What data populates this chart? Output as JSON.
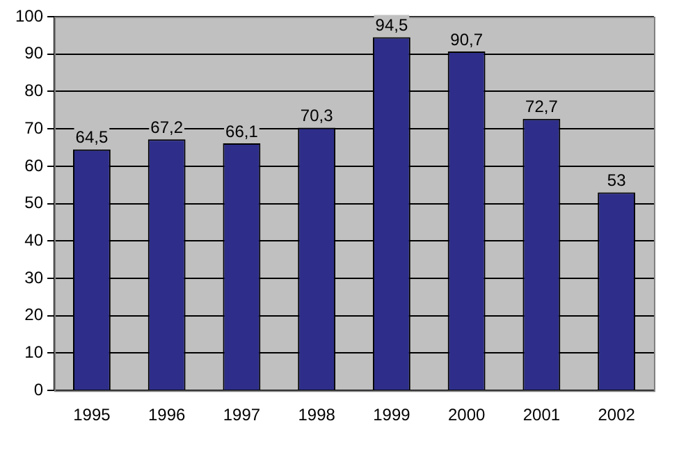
{
  "chart_data": {
    "type": "bar",
    "categories": [
      "1995",
      "1996",
      "1997",
      "1998",
      "1999",
      "2000",
      "2001",
      "2002"
    ],
    "values": [
      64.5,
      67.2,
      66.1,
      70.3,
      94.5,
      90.7,
      72.7,
      53
    ],
    "value_labels": [
      "64,5",
      "67,2",
      "66,1",
      "70,3",
      "94,5",
      "90,7",
      "72,7",
      "53"
    ],
    "color": "#2e2e8a",
    "ylim": [
      0,
      100
    ],
    "yticks": [
      0,
      10,
      20,
      30,
      40,
      50,
      60,
      70,
      80,
      90,
      100
    ],
    "grid": "y",
    "legend": false
  }
}
